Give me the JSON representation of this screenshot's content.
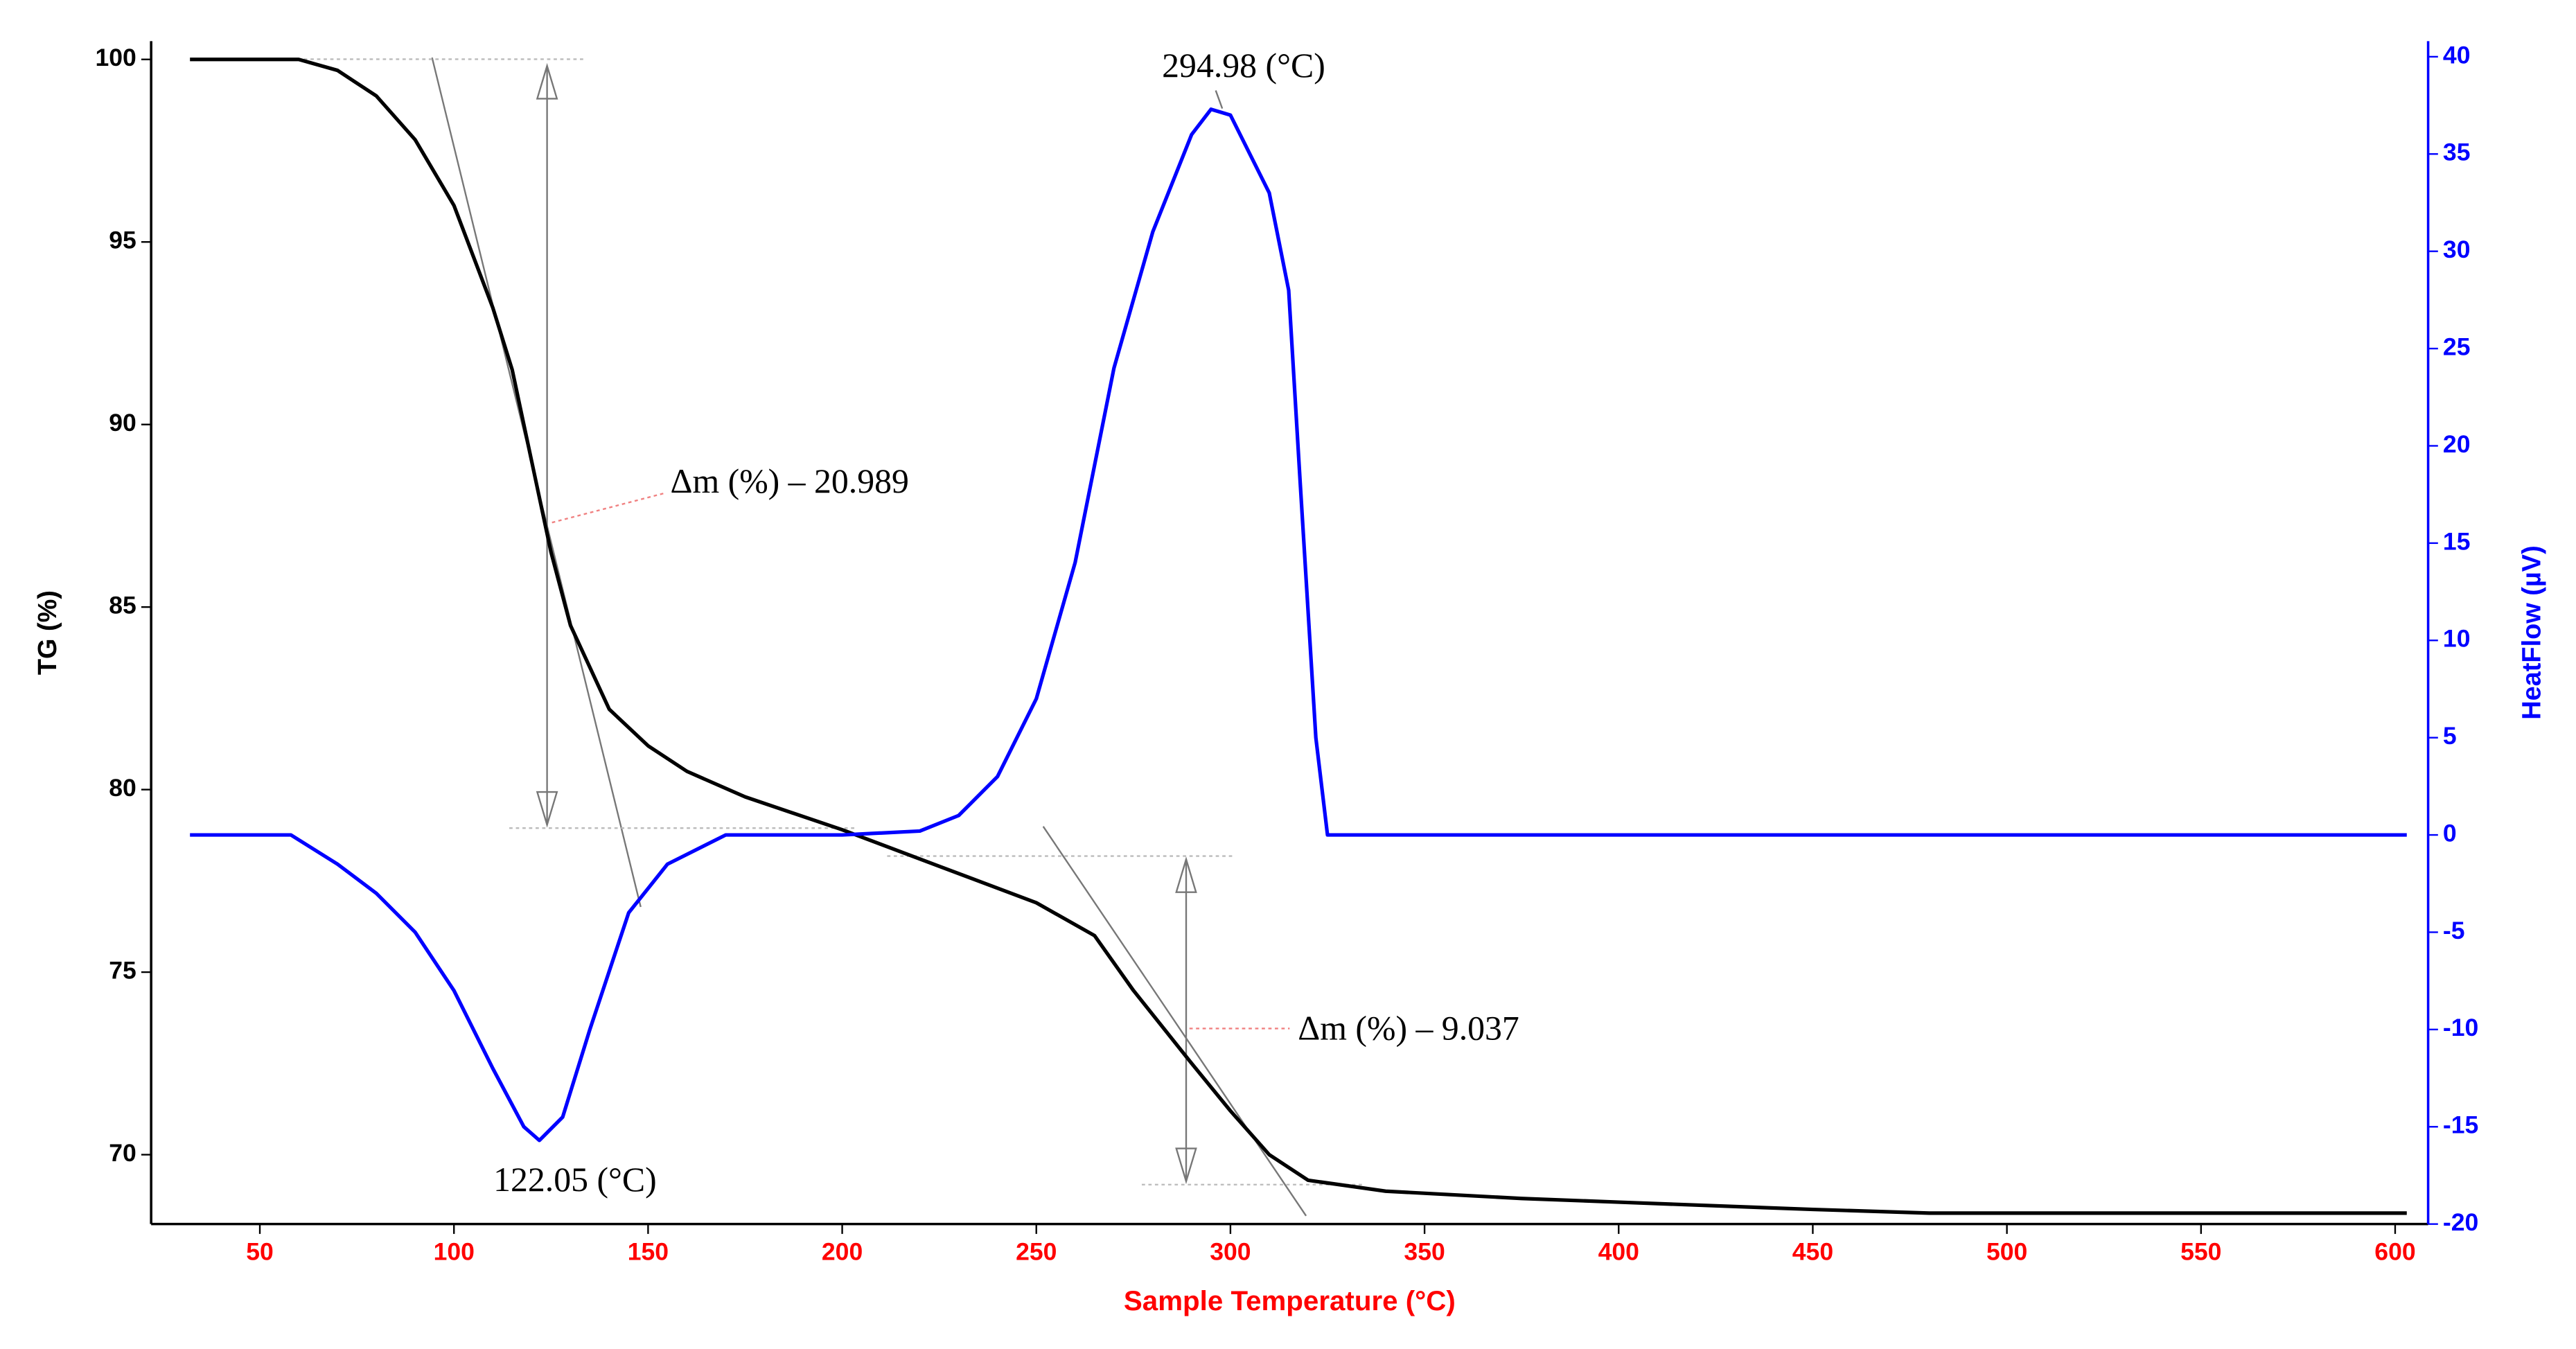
{
  "chart_data": {
    "type": "line",
    "y_label": "TG (%)",
    "y2_label": "HeatFlow (µV)",
    "x_label": "Sample Temperature (°C)",
    "x_label_color": "#ff0000",
    "y2_color": "#0000ff",
    "xlim": [
      22,
      608.5
    ],
    "xticks": [
      50,
      100,
      150,
      200,
      250,
      300,
      350,
      400,
      450,
      500,
      550,
      600
    ],
    "ylim": [
      68.1,
      100.5
    ],
    "yticks": [
      70,
      75,
      80,
      85,
      90,
      95,
      100
    ],
    "y2lim": [
      -20,
      40.8
    ],
    "y2ticks": [
      -20,
      -15,
      -10,
      -5,
      0,
      5,
      10,
      15,
      20,
      25,
      30,
      35,
      40
    ],
    "annotations": [
      "294.98 (°C)",
      "122.05 (°C)",
      "Δm (%) – 20.989",
      "Δm (%) – 9.037"
    ],
    "series": [
      {
        "color": "#000000",
        "axis": "y",
        "x": [
          32,
          60,
          70,
          80,
          90,
          100,
          110,
          115,
          120,
          125,
          130,
          140,
          150,
          160,
          175,
          200,
          225,
          250,
          265,
          275,
          290,
          300,
          310,
          320,
          340,
          375,
          400,
          450,
          480,
          603
        ],
        "values": [
          100,
          100,
          99.7,
          99,
          97.8,
          96,
          93.2,
          91.5,
          89,
          86.5,
          84.5,
          82.2,
          81.2,
          80.5,
          79.8,
          78.9,
          77.9,
          76.9,
          76,
          74.5,
          72.5,
          71.2,
          70,
          69.3,
          69,
          68.8,
          68.7,
          68.5,
          68.4,
          68.4
        ]
      },
      {
        "color": "#0000ff",
        "axis": "y2",
        "x": [
          32,
          58,
          70,
          80,
          90,
          100,
          110,
          118,
          122,
          128,
          135,
          145,
          155,
          170,
          200,
          220,
          230,
          240,
          250,
          260,
          270,
          280,
          290,
          295,
          300,
          310,
          315,
          318,
          322,
          325,
          603
        ],
        "values": [
          0,
          0,
          -1.5,
          -3,
          -5,
          -8,
          -12,
          -15,
          -15.7,
          -14.5,
          -10,
          -4,
          -1.5,
          0,
          0,
          0.2,
          1,
          3,
          7,
          14,
          24,
          31,
          36,
          37.3,
          37,
          33,
          28,
          18,
          5,
          0,
          0
        ]
      }
    ]
  }
}
